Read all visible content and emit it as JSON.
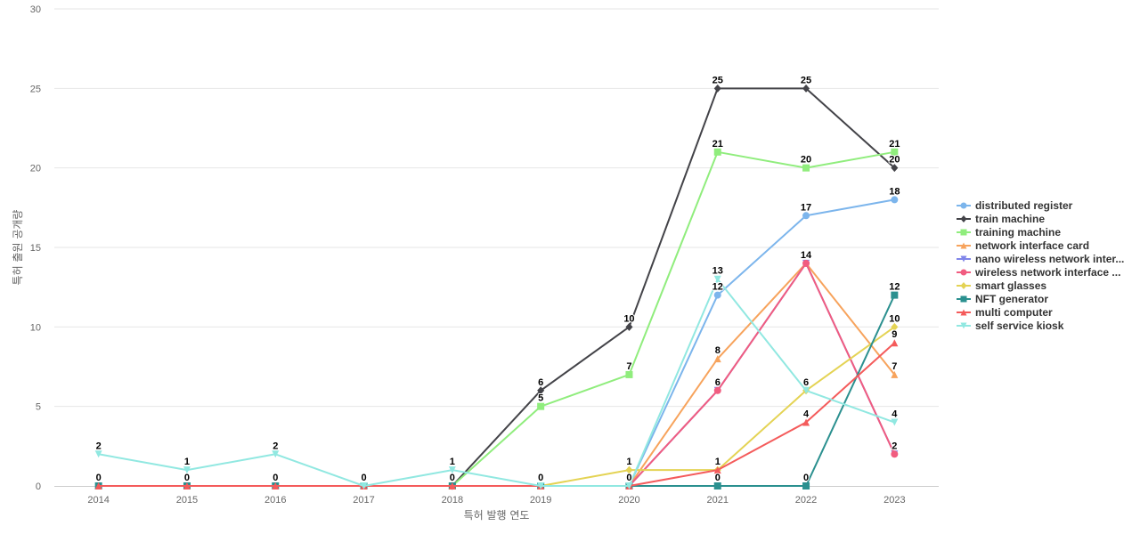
{
  "chart_data": {
    "type": "line",
    "title": "",
    "xlabel": "특허 발행 연도",
    "ylabel": "특허 출원 공개량",
    "x": [
      "2014",
      "2015",
      "2016",
      "2017",
      "2018",
      "2019",
      "2020",
      "2021",
      "2022",
      "2023"
    ],
    "ylim": [
      0,
      30
    ],
    "yticks": [
      0,
      5,
      10,
      15,
      20,
      25,
      30
    ],
    "grid": true,
    "legend_position": "right",
    "series": [
      {
        "name": "distributed register",
        "color": "#7cb5ec",
        "marker": "circle",
        "values": [
          null,
          null,
          null,
          null,
          null,
          null,
          0,
          12,
          17,
          18
        ]
      },
      {
        "name": "train machine",
        "color": "#434348",
        "marker": "diamond",
        "values": [
          null,
          null,
          null,
          null,
          0,
          6,
          10,
          25,
          25,
          20
        ]
      },
      {
        "name": "training machine",
        "color": "#90ed7d",
        "marker": "square",
        "values": [
          null,
          null,
          null,
          null,
          0,
          5,
          7,
          21,
          20,
          21
        ]
      },
      {
        "name": "network interface card",
        "color": "#f7a35c",
        "marker": "triangle",
        "values": [
          null,
          null,
          null,
          null,
          null,
          null,
          0,
          8,
          14,
          7
        ]
      },
      {
        "name": "nano wireless network inter...",
        "color": "#8085e9",
        "marker": "triangle-down",
        "values": [
          null,
          null,
          null,
          null,
          null,
          null,
          0,
          6,
          14,
          2
        ]
      },
      {
        "name": "wireless network interface ...",
        "color": "#f15c80",
        "marker": "circle",
        "values": [
          null,
          null,
          null,
          null,
          null,
          null,
          0,
          6,
          14,
          2
        ]
      },
      {
        "name": "smart glasses",
        "color": "#e4d354",
        "marker": "diamond",
        "values": [
          null,
          null,
          null,
          null,
          null,
          0,
          1,
          1,
          6,
          10
        ]
      },
      {
        "name": "NFT generator",
        "color": "#2b908f",
        "marker": "square",
        "values": [
          0,
          0,
          0,
          0,
          0,
          0,
          0,
          0,
          0,
          12
        ]
      },
      {
        "name": "multi computer",
        "color": "#f45b5b",
        "marker": "triangle",
        "values": [
          0,
          0,
          0,
          0,
          0,
          0,
          0,
          1,
          4,
          9
        ]
      },
      {
        "name": "self service kiosk",
        "color": "#91e8e1",
        "marker": "triangle-down",
        "values": [
          2,
          1,
          2,
          0,
          1,
          0,
          0,
          13,
          6,
          4
        ]
      }
    ],
    "data_labels": [
      {
        "x": "2014",
        "series": "self service kiosk",
        "text": "2"
      },
      {
        "x": "2014",
        "series": "NFT generator",
        "text": "0"
      },
      {
        "x": "2015",
        "series": "self service kiosk",
        "text": "1"
      },
      {
        "x": "2015",
        "series": "NFT generator",
        "text": "0"
      },
      {
        "x": "2016",
        "series": "self service kiosk",
        "text": "2"
      },
      {
        "x": "2016",
        "series": "NFT generator",
        "text": "0"
      },
      {
        "x": "2017",
        "series": "NFT generator",
        "text": "0"
      },
      {
        "x": "2018",
        "series": "self service kiosk",
        "text": "1"
      },
      {
        "x": "2018",
        "series": "NFT generator",
        "text": "0"
      },
      {
        "x": "2019",
        "series": "train machine",
        "text": "6"
      },
      {
        "x": "2019",
        "series": "training machine",
        "text": "5"
      },
      {
        "x": "2019",
        "series": "NFT generator",
        "text": "0"
      },
      {
        "x": "2020",
        "series": "train machine",
        "text": "10"
      },
      {
        "x": "2020",
        "series": "training machine",
        "text": "7"
      },
      {
        "x": "2020",
        "series": "smart glasses",
        "text": "1"
      },
      {
        "x": "2020",
        "series": "NFT generator",
        "text": "0"
      },
      {
        "x": "2021",
        "series": "train machine",
        "text": "25"
      },
      {
        "x": "2021",
        "series": "training machine",
        "text": "21"
      },
      {
        "x": "2021",
        "series": "self service kiosk",
        "text": "13"
      },
      {
        "x": "2021",
        "series": "distributed register",
        "text": "12"
      },
      {
        "x": "2021",
        "series": "network interface card",
        "text": "8"
      },
      {
        "x": "2021",
        "series": "wireless network interface ...",
        "text": "6"
      },
      {
        "x": "2021",
        "series": "multi computer",
        "text": "1"
      },
      {
        "x": "2021",
        "series": "NFT generator",
        "text": "0"
      },
      {
        "x": "2022",
        "series": "train machine",
        "text": "25"
      },
      {
        "x": "2022",
        "series": "training machine",
        "text": "20"
      },
      {
        "x": "2022",
        "series": "distributed register",
        "text": "17"
      },
      {
        "x": "2022",
        "series": "network interface card",
        "text": "14"
      },
      {
        "x": "2022",
        "series": "self service kiosk",
        "text": "6"
      },
      {
        "x": "2022",
        "series": "multi computer",
        "text": "4"
      },
      {
        "x": "2022",
        "series": "NFT generator",
        "text": "0"
      },
      {
        "x": "2023",
        "series": "training machine",
        "text": "21"
      },
      {
        "x": "2023",
        "series": "train machine",
        "text": "20"
      },
      {
        "x": "2023",
        "series": "distributed register",
        "text": "18"
      },
      {
        "x": "2023",
        "series": "NFT generator",
        "text": "12"
      },
      {
        "x": "2023",
        "series": "smart glasses",
        "text": "10"
      },
      {
        "x": "2023",
        "series": "multi computer",
        "text": "9"
      },
      {
        "x": "2023",
        "series": "network interface card",
        "text": "7"
      },
      {
        "x": "2023",
        "series": "self service kiosk",
        "text": "4"
      },
      {
        "x": "2023",
        "series": "wireless network interface ...",
        "text": "2"
      }
    ]
  }
}
